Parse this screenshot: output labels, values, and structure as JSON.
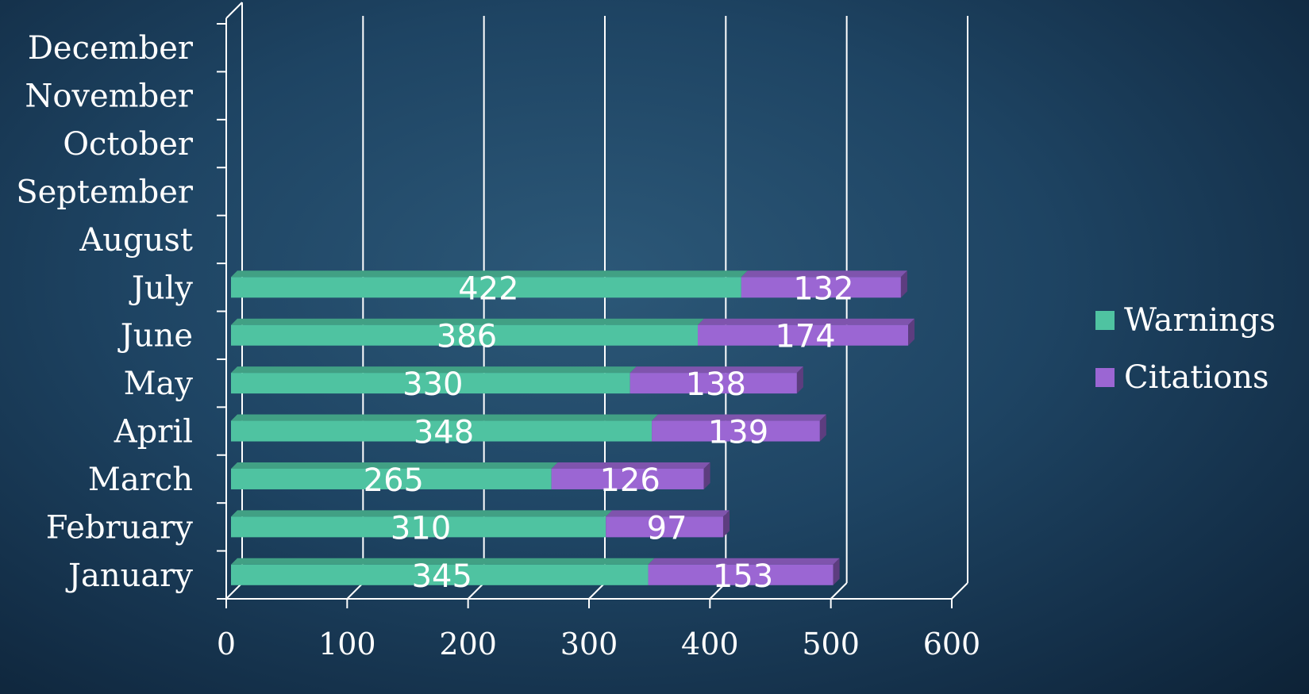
{
  "chart_data": {
    "type": "bar",
    "orientation": "horizontal",
    "stacked": true,
    "three_d": true,
    "categories": [
      "January",
      "February",
      "March",
      "April",
      "May",
      "June",
      "July",
      "August",
      "September",
      "October",
      "November",
      "December"
    ],
    "series": [
      {
        "name": "Warnings",
        "color": "#4fc3a1",
        "values": [
          345,
          310,
          265,
          348,
          330,
          386,
          422,
          null,
          null,
          null,
          null,
          null
        ]
      },
      {
        "name": "Citations",
        "color": "#9b66d3",
        "values": [
          153,
          97,
          126,
          139,
          138,
          174,
          132,
          null,
          null,
          null,
          null,
          null
        ]
      }
    ],
    "data_labels": {
      "Warnings": [
        "345",
        "310",
        "265",
        "348",
        "330",
        "386",
        "422"
      ],
      "Citations": [
        "153",
        "97",
        "126",
        "139",
        "138",
        "174",
        "132"
      ]
    },
    "xlim": [
      0,
      600
    ],
    "x_ticks": [
      0,
      100,
      200,
      300,
      400,
      500,
      600
    ],
    "x_tick_labels": [
      "0",
      "100",
      "200",
      "300",
      "400",
      "500",
      "600"
    ],
    "grid": true,
    "legend_position": "right",
    "title": "",
    "xlabel": "",
    "ylabel": ""
  }
}
